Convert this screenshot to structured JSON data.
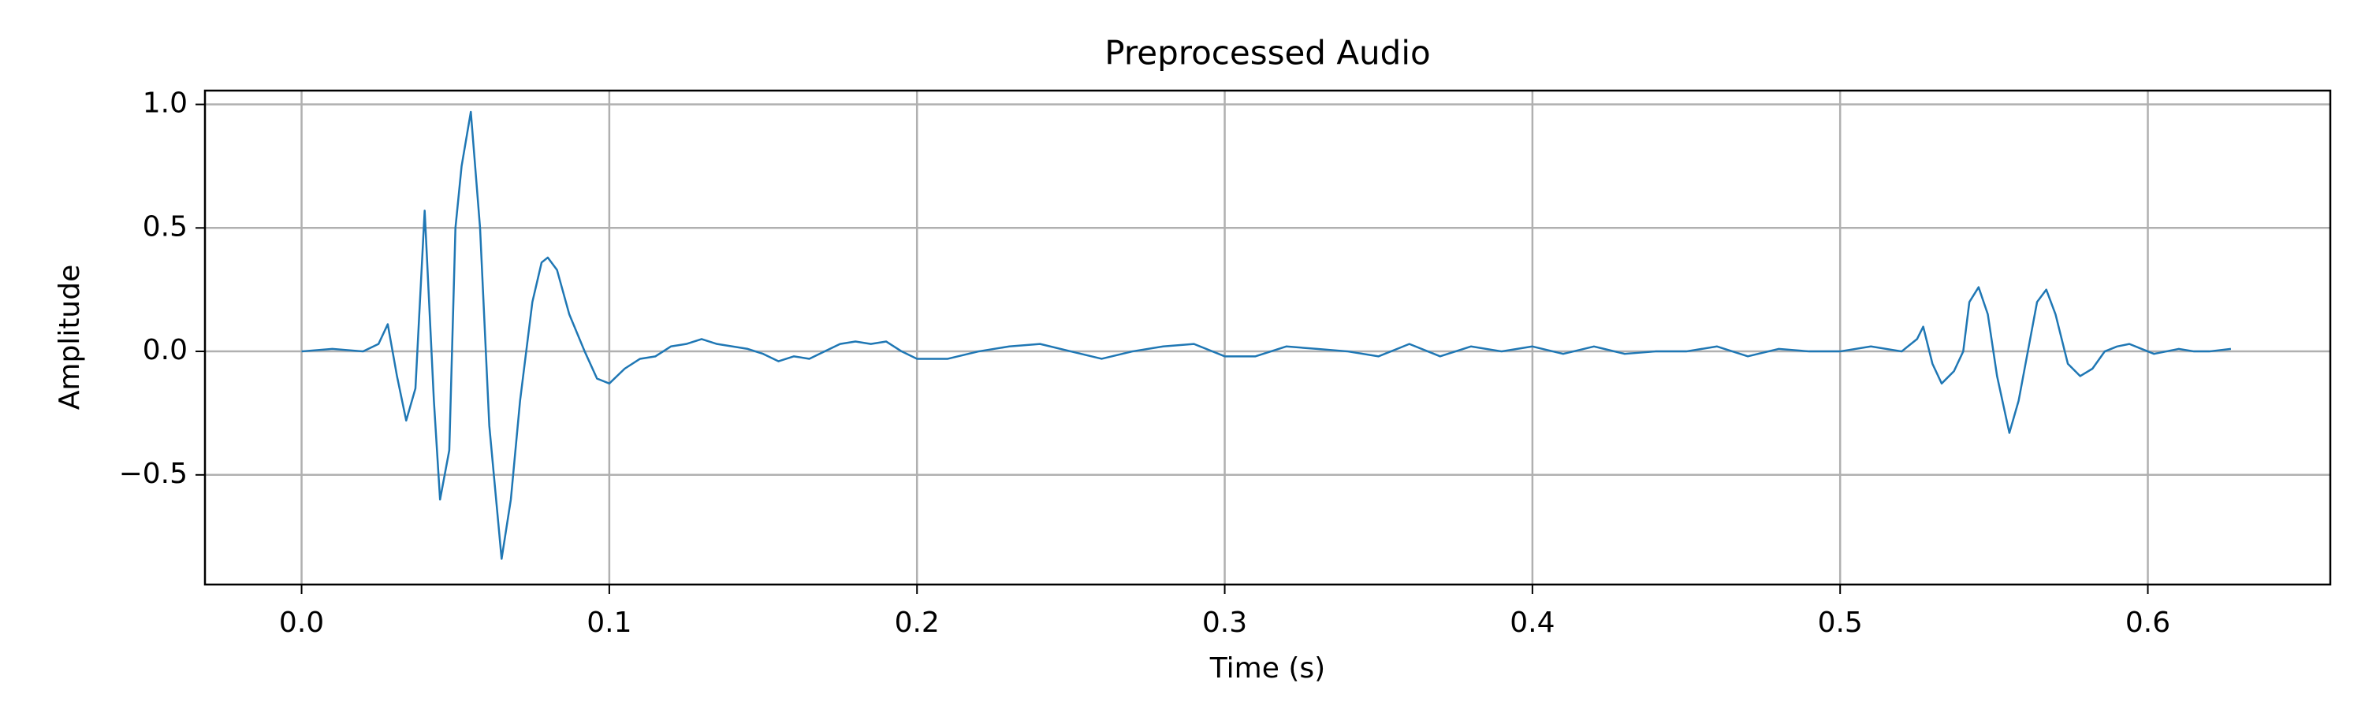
{
  "chart_data": {
    "type": "line",
    "title": "Preprocessed Audio",
    "xlabel": "Time (s)",
    "ylabel": "Amplitude",
    "color": "#1f77b4",
    "grid": true,
    "xlim": [
      -0.0314,
      0.6593
    ],
    "ylim": [
      -0.944,
      1.056
    ],
    "xticks": [
      {
        "value": 0,
        "label": "0.0"
      },
      0.1,
      0.2,
      0.3,
      0.4,
      0.5,
      0.6
    ],
    "yticks": [
      {
        "value": -0.5,
        "label": "−0.5"
      },
      {
        "value": 0,
        "label": "0.0"
      },
      0.5,
      {
        "value": 1,
        "label": "1.0"
      }
    ],
    "x": [
      0.0,
      0.01,
      0.02,
      0.025,
      0.028,
      0.031,
      0.034,
      0.037,
      0.04,
      0.043,
      0.045,
      0.048,
      0.05,
      0.052,
      0.055,
      0.058,
      0.061,
      0.065,
      0.068,
      0.071,
      0.075,
      0.078,
      0.08,
      0.083,
      0.087,
      0.092,
      0.096,
      0.1,
      0.105,
      0.11,
      0.115,
      0.12,
      0.125,
      0.13,
      0.135,
      0.14,
      0.145,
      0.15,
      0.155,
      0.16,
      0.165,
      0.17,
      0.175,
      0.18,
      0.185,
      0.19,
      0.195,
      0.2,
      0.21,
      0.22,
      0.23,
      0.24,
      0.25,
      0.26,
      0.27,
      0.28,
      0.29,
      0.3,
      0.31,
      0.32,
      0.33,
      0.34,
      0.35,
      0.36,
      0.37,
      0.38,
      0.39,
      0.4,
      0.41,
      0.42,
      0.43,
      0.44,
      0.45,
      0.46,
      0.47,
      0.48,
      0.49,
      0.5,
      0.51,
      0.52,
      0.525,
      0.527,
      0.53,
      0.533,
      0.537,
      0.54,
      0.542,
      0.545,
      0.548,
      0.551,
      0.555,
      0.558,
      0.561,
      0.564,
      0.567,
      0.57,
      0.574,
      0.578,
      0.582,
      0.586,
      0.59,
      0.594,
      0.598,
      0.602,
      0.606,
      0.61,
      0.615,
      0.62,
      0.627
    ],
    "values": [
      0,
      0.01,
      0,
      0.03,
      0.11,
      -0.1,
      -0.28,
      -0.15,
      0.57,
      -0.2,
      -0.6,
      -0.4,
      0.5,
      0.75,
      0.97,
      0.5,
      -0.3,
      -0.84,
      -0.6,
      -0.2,
      0.2,
      0.36,
      0.38,
      0.33,
      0.15,
      0,
      -0.11,
      -0.13,
      -0.07,
      -0.03,
      -0.02,
      0.02,
      0.03,
      0.05,
      0.03,
      0.02,
      0.01,
      -0.01,
      -0.04,
      -0.02,
      -0.03,
      0,
      0.03,
      0.04,
      0.03,
      0.04,
      0,
      -0.03,
      -0.03,
      0,
      0.02,
      0.03,
      0,
      -0.03,
      0,
      0.02,
      0.03,
      -0.02,
      -0.02,
      0.02,
      0.01,
      0,
      -0.02,
      0.03,
      -0.02,
      0.02,
      0,
      0.02,
      -0.01,
      0.02,
      -0.01,
      0,
      0,
      0.02,
      -0.02,
      0.01,
      0,
      0,
      0.02,
      0,
      0.05,
      0.1,
      -0.05,
      -0.13,
      -0.08,
      0,
      0.2,
      0.26,
      0.15,
      -0.1,
      -0.33,
      -0.2,
      0,
      0.2,
      0.25,
      0.15,
      -0.05,
      -0.1,
      -0.07,
      0,
      0.02,
      0.03,
      0.01,
      -0.01,
      0,
      0.01,
      0,
      0,
      0.01
    ]
  }
}
